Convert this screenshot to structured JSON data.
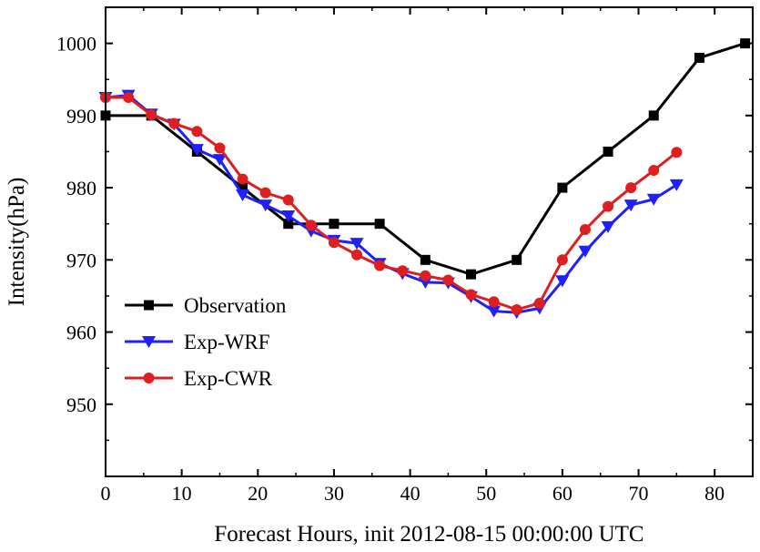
{
  "chart_data": {
    "type": "line",
    "xlabel": "Forecast Hours, init 2012-08-15 00:00:00 UTC",
    "ylabel": "Intensity(hPa)",
    "xlim": [
      0,
      85
    ],
    "ylim": [
      940,
      1005
    ],
    "xticks": [
      0,
      10,
      20,
      30,
      40,
      50,
      60,
      70,
      80
    ],
    "yticks": [
      950,
      960,
      970,
      980,
      990,
      1000
    ],
    "grid": false,
    "legend_position": "lower-left",
    "series": [
      {
        "name": "Observation",
        "color": "#000000",
        "marker": "square",
        "x": [
          0,
          6,
          12,
          18,
          24,
          30,
          36,
          42,
          48,
          54,
          60,
          66,
          72,
          78,
          84
        ],
        "y": [
          990,
          990,
          985,
          980,
          975,
          975,
          975,
          970,
          968,
          970,
          980,
          985,
          990,
          998,
          1000
        ]
      },
      {
        "name": "Exp-WRF",
        "color": "#1f1fff",
        "marker": "triangle-down",
        "x": [
          0,
          3,
          6,
          9,
          12,
          15,
          18,
          21,
          24,
          27,
          30,
          33,
          36,
          39,
          42,
          45,
          48,
          51,
          54,
          57,
          60,
          63,
          66,
          69,
          72,
          75
        ],
        "y": [
          992.5,
          992.8,
          990.2,
          988.8,
          985.3,
          983.9,
          979,
          977.6,
          976.1,
          974,
          972.7,
          972.3,
          969.5,
          968.1,
          966.9,
          966.8,
          964.9,
          962.9,
          962.7,
          963.3,
          967.1,
          971.2,
          974.6,
          977.6,
          978.4,
          980.4
        ]
      },
      {
        "name": "Exp-CWR",
        "color": "#dd1f1f",
        "marker": "circle",
        "x": [
          0,
          3,
          6,
          9,
          12,
          15,
          18,
          21,
          24,
          27,
          30,
          33,
          36,
          39,
          42,
          45,
          48,
          51,
          54,
          57,
          60,
          63,
          66,
          69,
          72,
          75
        ],
        "y": [
          992.5,
          992.5,
          990.1,
          988.9,
          987.8,
          985.5,
          981.2,
          979.3,
          978.3,
          974.8,
          972.4,
          970.7,
          969.2,
          968.5,
          967.8,
          967.2,
          965.2,
          964.2,
          963.1,
          964,
          970,
          974.2,
          977.4,
          980,
          982.4,
          984.9
        ]
      }
    ]
  }
}
